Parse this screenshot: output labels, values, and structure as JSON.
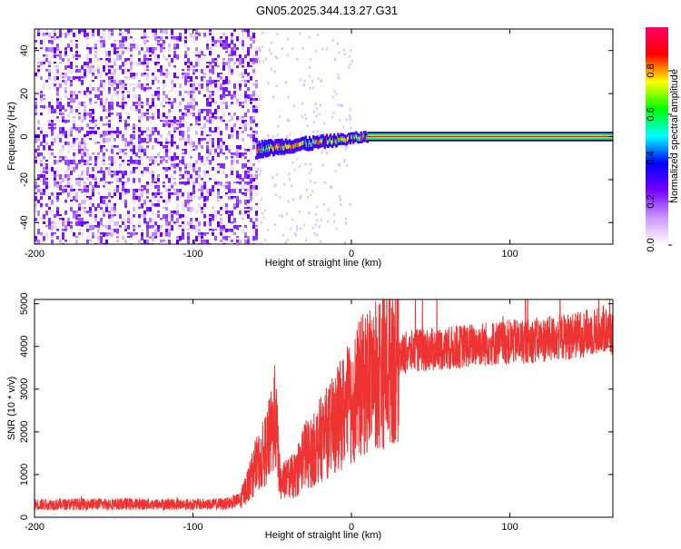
{
  "figure": {
    "title": "GN05.2025.344.13.27.G31"
  },
  "chart_data": [
    {
      "type": "heatmap",
      "xlabel": "Height of straight line (km)",
      "ylabel": "Frequency (Hz)",
      "xlim": [
        -200,
        165
      ],
      "ylim": [
        -50,
        50
      ],
      "xticks": [
        -200,
        -100,
        0,
        100
      ],
      "yticks": [
        -40,
        -20,
        0,
        20,
        40
      ],
      "colorbar": {
        "label": "Normalized spectral amplitude",
        "range": [
          0,
          1
        ],
        "ticks": [
          0.0,
          0.2,
          0.4,
          0.6,
          0.8
        ],
        "tick_labels": [
          "0.0",
          "0.2",
          "0.4",
          "0.6",
          "0.8"
        ],
        "colormap": [
          "#ffffff",
          "#cc99ff",
          "#7700ff",
          "#0000ff",
          "#00ffff",
          "#00ff00",
          "#ffff00",
          "#ff0000",
          "#ff0066"
        ]
      },
      "regions": [
        {
          "name": "noise",
          "x": [
            -200,
            -60
          ],
          "freq": [
            -50,
            50
          ],
          "level": 0.2
        },
        {
          "name": "transition",
          "x": [
            -60,
            10
          ],
          "freq": [
            -10,
            3
          ],
          "level": 0.45
        },
        {
          "name": "carrier",
          "x": [
            10,
            165
          ],
          "freq": [
            0,
            0
          ],
          "level": 0.95
        }
      ]
    },
    {
      "type": "line",
      "xlabel": "Height of straight line (km)",
      "ylabel": "SNR (10 * v/v)",
      "xlim": [
        -200,
        165
      ],
      "ylim": [
        0,
        5100
      ],
      "xticks": [
        -200,
        -100,
        0,
        100
      ],
      "yticks": [
        0,
        1000,
        2000,
        3000,
        4000,
        5000
      ],
      "color": "#ee3333",
      "series": [
        {
          "name": "SNR",
          "x": [
            -200,
            -150,
            -100,
            -80,
            -70,
            -65,
            -60,
            -55,
            -50,
            -48,
            -45,
            -40,
            -35,
            -30,
            -25,
            -20,
            -15,
            -10,
            -5,
            0,
            5,
            10,
            15,
            20,
            25,
            30,
            40,
            60,
            80,
            100,
            120,
            140,
            160,
            165
          ],
          "values": [
            300,
            310,
            300,
            310,
            400,
            800,
            1200,
            1500,
            2000,
            2400,
            800,
            900,
            1000,
            1500,
            1500,
            1800,
            2000,
            2200,
            2500,
            2700,
            3000,
            3200,
            3400,
            3500,
            3700,
            3800,
            3900,
            3950,
            4050,
            4100,
            4150,
            4250,
            4400,
            4300
          ]
        }
      ]
    }
  ]
}
